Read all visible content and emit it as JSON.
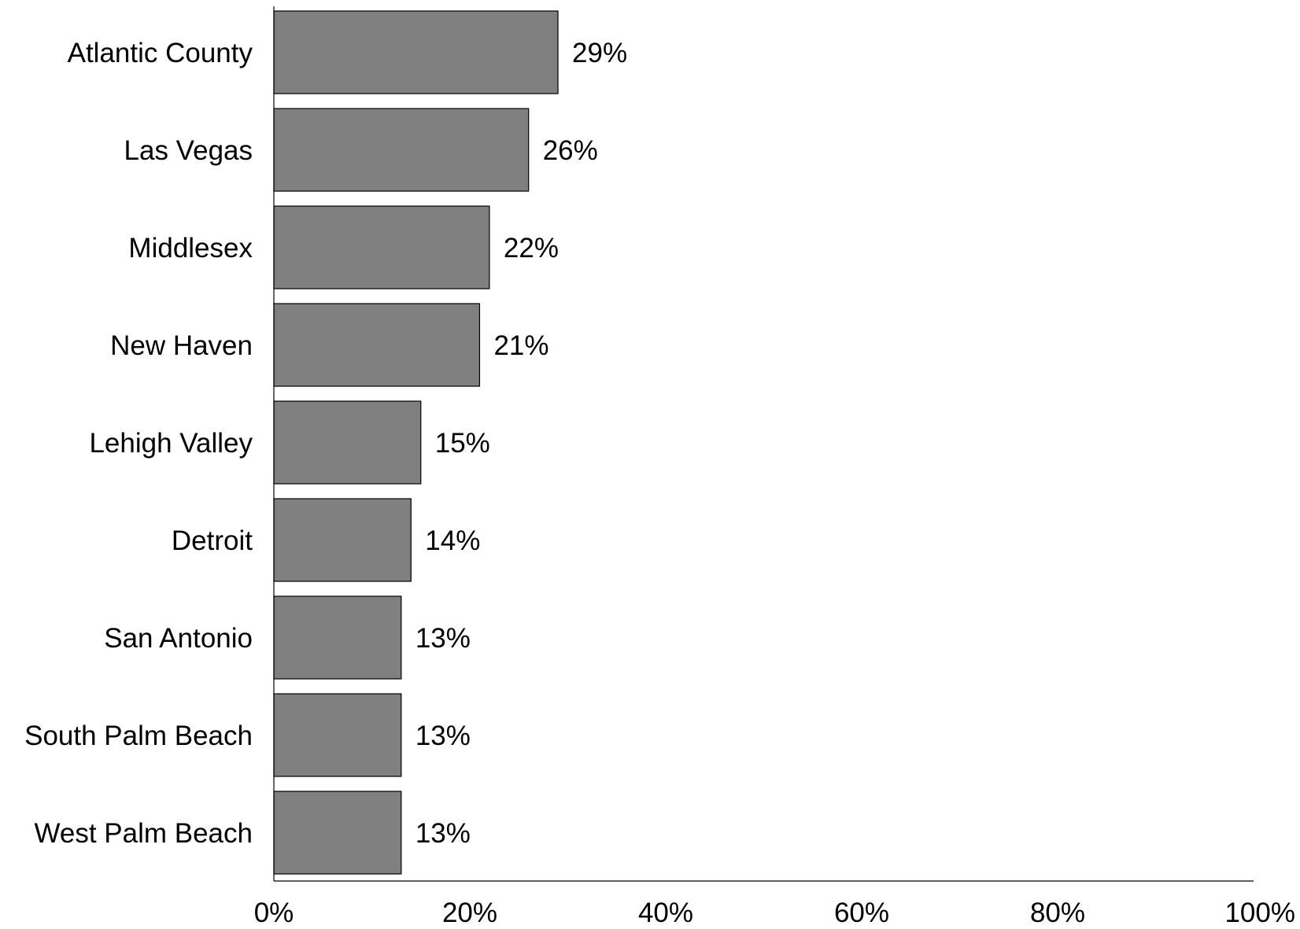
{
  "chart_data": {
    "type": "bar",
    "orientation": "horizontal",
    "categories": [
      "Atlantic County",
      "Las Vegas",
      "Middlesex",
      "New Haven",
      "Lehigh Valley",
      "Detroit",
      "San Antonio",
      "South Palm Beach",
      "West Palm Beach"
    ],
    "values": [
      29,
      26,
      22,
      21,
      15,
      14,
      13,
      13,
      13
    ],
    "value_labels": [
      "29%",
      "26%",
      "22%",
      "21%",
      "15%",
      "14%",
      "13%",
      "13%",
      "13%"
    ],
    "xlim": [
      0,
      100
    ],
    "x_ticks": [
      0,
      20,
      40,
      60,
      80,
      100
    ],
    "x_tick_labels": [
      "0%",
      "20%",
      "40%",
      "60%",
      "80%",
      "100%"
    ],
    "title": "",
    "xlabel": "",
    "ylabel": "",
    "grid": false,
    "legend": "none",
    "colors": {
      "bar_fill": "#808080",
      "bar_stroke": "#000000",
      "axis": "#000000",
      "text": "#000000"
    }
  }
}
